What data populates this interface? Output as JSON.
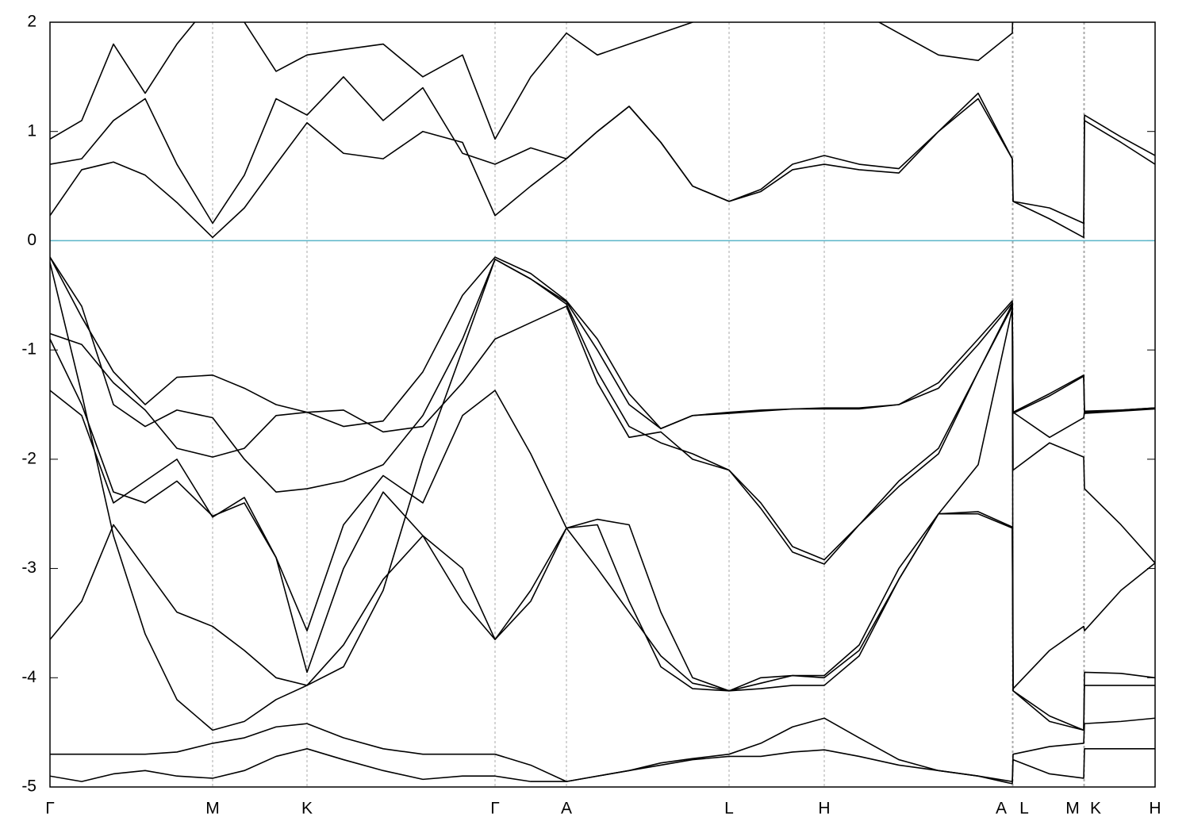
{
  "chart_data": {
    "type": "line",
    "xlim": [
      0,
      13.93
    ],
    "ylim": [
      -5,
      2
    ],
    "yticks": [
      -5,
      -4,
      -3,
      -2,
      -1,
      0,
      1,
      2
    ],
    "xticks": [
      {
        "value": 0,
        "label": "Γ"
      },
      {
        "value": 2.05,
        "label": "M"
      },
      {
        "value": 3.24,
        "label": "K"
      },
      {
        "value": 5.61,
        "label": "Γ"
      },
      {
        "value": 6.51,
        "label": "A"
      },
      {
        "value": 8.56,
        "label": "L"
      },
      {
        "value": 9.76,
        "label": "H"
      },
      {
        "value": 12.13,
        "label": "A"
      },
      {
        "value": 12.14,
        "label": "L"
      },
      {
        "value": 13.03,
        "label": "M"
      },
      {
        "value": 13.04,
        "label": "K"
      },
      {
        "value": 13.93,
        "label": "H"
      }
    ],
    "grid": true,
    "fermi_level": {
      "value": 0,
      "color": "#5ab4c8"
    },
    "x": [
      0,
      0.4,
      0.8,
      1.2,
      1.6,
      2.05,
      2.45,
      2.85,
      3.24,
      3.7,
      4.2,
      4.7,
      5.2,
      5.61,
      6.06,
      6.51,
      6.9,
      7.3,
      7.7,
      8.1,
      8.56,
      8.96,
      9.36,
      9.76,
      10.2,
      10.7,
      11.2,
      11.7,
      12.13,
      12.14,
      12.6,
      13.03,
      13.04,
      13.5,
      13.93
    ],
    "series": [
      {
        "color": "#000000",
        "values": [
          0.23,
          0.65,
          0.72,
          0.6,
          0.35,
          0.03,
          0.3,
          0.7,
          1.08,
          0.8,
          0.75,
          1.0,
          0.9,
          0.23,
          0.5,
          0.75,
          1.0,
          1.23,
          0.9,
          0.5,
          0.36,
          0.45,
          0.65,
          0.7,
          0.65,
          0.62,
          1.0,
          1.3,
          0.75,
          0.36,
          0.2,
          0.03,
          1.1,
          0.9,
          0.7
        ]
      },
      {
        "color": "#000000",
        "values": [
          0.7,
          0.75,
          1.1,
          1.3,
          0.7,
          0.16,
          0.6,
          1.3,
          1.15,
          1.5,
          1.1,
          1.4,
          0.8,
          0.7,
          0.85,
          0.75,
          1.0,
          1.23,
          0.9,
          0.5,
          0.36,
          0.47,
          0.7,
          0.78,
          0.7,
          0.66,
          1.0,
          1.35,
          0.75,
          0.36,
          0.3,
          0.16,
          1.15,
          0.95,
          0.78
        ]
      },
      {
        "color": "#000000",
        "values": [
          0.93,
          1.1,
          1.8,
          1.35,
          1.8,
          2.2,
          2.0,
          1.55,
          1.7,
          1.75,
          1.8,
          1.5,
          1.7,
          0.93,
          1.5,
          1.9,
          1.7,
          1.8,
          1.9,
          2.0,
          2.1,
          2.2,
          2.3,
          2.3,
          2.1,
          1.9,
          1.7,
          1.65,
          1.9,
          2.2,
          2.2,
          2.2,
          2.2,
          2.2,
          2.2
        ]
      },
      {
        "color": "#000000",
        "values": [
          -0.15,
          -0.7,
          -1.2,
          -1.5,
          -1.25,
          -1.23,
          -1.35,
          -1.5,
          -1.57,
          -1.7,
          -1.65,
          -1.2,
          -0.5,
          -0.15,
          -0.3,
          -0.55,
          -0.9,
          -1.4,
          -1.72,
          -1.6,
          -1.57,
          -1.55,
          -1.54,
          -1.53,
          -1.53,
          -1.5,
          -1.3,
          -0.9,
          -0.55,
          -1.57,
          -1.4,
          -1.23,
          -1.56,
          -1.55,
          -1.53
        ]
      },
      {
        "color": "#000000",
        "values": [
          -0.15,
          -0.6,
          -1.5,
          -1.7,
          -1.55,
          -1.62,
          -2.0,
          -2.3,
          -2.27,
          -2.2,
          -2.05,
          -1.6,
          -0.9,
          -0.17,
          -0.35,
          -0.58,
          -1.2,
          -1.7,
          -1.85,
          -1.95,
          -2.1,
          -2.4,
          -2.8,
          -2.92,
          -2.6,
          -2.2,
          -1.9,
          -1.2,
          -0.58,
          -1.57,
          -1.8,
          -1.62,
          -1.57,
          -1.55,
          -1.53
        ]
      },
      {
        "color": "#000000",
        "values": [
          -0.85,
          -0.95,
          -1.3,
          -1.55,
          -1.9,
          -1.98,
          -1.9,
          -1.6,
          -1.57,
          -1.55,
          -1.75,
          -1.7,
          -1.3,
          -0.9,
          -0.75,
          -0.6,
          -1.3,
          -1.8,
          -1.75,
          -2.0,
          -2.1,
          -2.45,
          -2.85,
          -2.96,
          -2.6,
          -2.25,
          -1.95,
          -1.2,
          -0.6,
          -2.1,
          -1.85,
          -1.98,
          -2.27,
          -2.6,
          -2.95
        ]
      },
      {
        "color": "#000000",
        "values": [
          -0.9,
          -1.5,
          -2.3,
          -2.4,
          -2.2,
          -2.52,
          -2.4,
          -2.9,
          -3.57,
          -2.6,
          -2.15,
          -2.4,
          -1.6,
          -1.37,
          -1.95,
          -2.63,
          -2.55,
          -2.6,
          -3.4,
          -4.0,
          -4.12,
          -4.05,
          -3.98,
          -3.98,
          -3.7,
          -3.0,
          -2.5,
          -2.05,
          -0.62,
          -4.1,
          -3.75,
          -3.53,
          -3.57,
          -3.2,
          -2.95
        ]
      },
      {
        "color": "#000000",
        "values": [
          -1.37,
          -1.6,
          -2.4,
          -2.2,
          -2.0,
          -2.53,
          -2.35,
          -2.9,
          -3.95,
          -3.0,
          -2.3,
          -2.7,
          -3.3,
          -3.65,
          -3.2,
          -2.63,
          -3.0,
          -3.4,
          -3.8,
          -4.05,
          -4.12,
          -4.1,
          -4.07,
          -4.07,
          -3.8,
          -3.1,
          -2.5,
          -2.48,
          -2.62,
          -4.12,
          -4.35,
          -4.48,
          -3.95,
          -3.96,
          -4.0
        ]
      },
      {
        "color": "#000000",
        "values": [
          -3.65,
          -3.3,
          -2.6,
          -3.0,
          -3.4,
          -3.53,
          -3.75,
          -4.0,
          -4.07,
          -3.7,
          -3.1,
          -2.7,
          -3.0,
          -3.65,
          -3.3,
          -2.63,
          -2.6,
          -3.3,
          -3.9,
          -4.1,
          -4.12,
          -4.0,
          -3.98,
          -4.0,
          -3.75,
          -3.1,
          -2.5,
          -2.5,
          -2.63,
          -4.12,
          -4.4,
          -4.48,
          -4.07,
          -4.07,
          -4.07
        ]
      },
      {
        "color": "#000000",
        "values": [
          -0.2,
          -1.4,
          -2.7,
          -3.6,
          -4.2,
          -4.48,
          -4.4,
          -4.2,
          -4.07,
          -3.9,
          -3.2,
          -2.0,
          -1.0,
          -0.17,
          -0.35,
          -0.56,
          -1.0,
          -1.5,
          -1.72,
          -1.6,
          -1.58,
          -1.56,
          -1.54,
          -1.54,
          -1.54,
          -1.5,
          -1.35,
          -0.95,
          -0.57,
          -1.58,
          -1.42,
          -1.24,
          -1.58,
          -1.56,
          -1.54
        ]
      },
      {
        "color": "#000000",
        "values": [
          -4.7,
          -4.7,
          -4.7,
          -4.7,
          -4.68,
          -4.6,
          -4.55,
          -4.45,
          -4.42,
          -4.55,
          -4.65,
          -4.7,
          -4.7,
          -4.7,
          -4.8,
          -4.95,
          -4.9,
          -4.85,
          -4.78,
          -4.74,
          -4.7,
          -4.6,
          -4.45,
          -4.37,
          -4.55,
          -4.75,
          -4.85,
          -4.9,
          -4.95,
          -4.7,
          -4.63,
          -4.6,
          -4.42,
          -4.4,
          -4.37
        ]
      },
      {
        "color": "#000000",
        "values": [
          -4.9,
          -4.95,
          -4.88,
          -4.85,
          -4.9,
          -4.92,
          -4.85,
          -4.72,
          -4.65,
          -4.75,
          -4.85,
          -4.93,
          -4.9,
          -4.9,
          -4.95,
          -4.95,
          -4.9,
          -4.85,
          -4.8,
          -4.75,
          -4.72,
          -4.72,
          -4.68,
          -4.66,
          -4.72,
          -4.8,
          -4.85,
          -4.9,
          -4.97,
          -4.75,
          -4.88,
          -4.92,
          -4.65,
          -4.65,
          -4.65
        ]
      }
    ]
  }
}
